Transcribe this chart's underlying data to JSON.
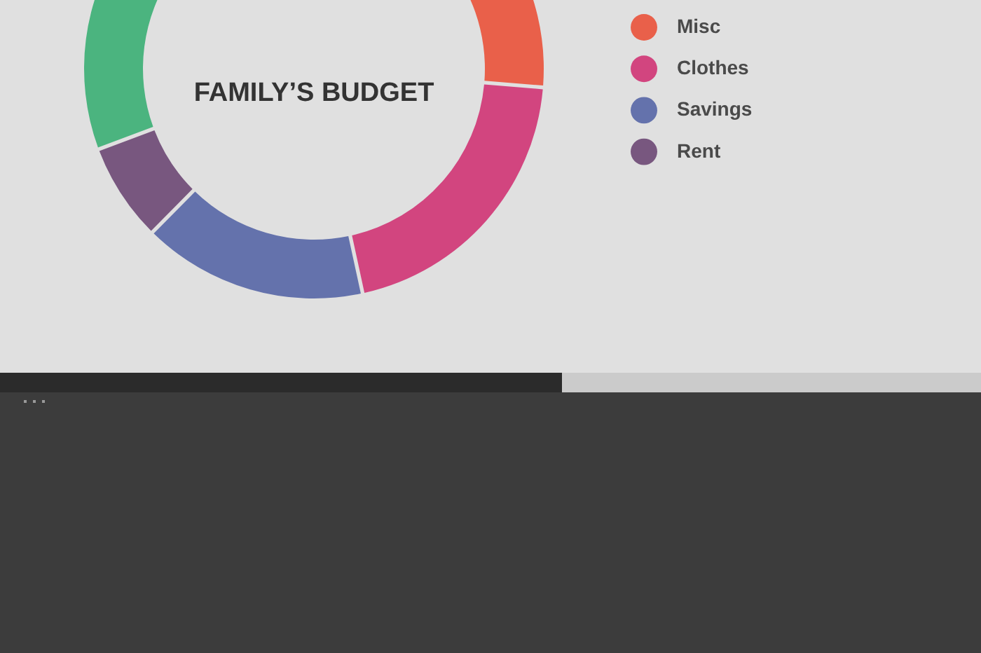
{
  "chart_data": {
    "type": "donut",
    "title": "FAMILY’S BUDGET",
    "categories": [
      "Misc",
      "Clothes",
      "Savings",
      "Rent",
      null
    ],
    "values": [
      26.3,
      20.3,
      15.8,
      6.9,
      30.7
    ],
    "colors": [
      "#e9604a",
      "#d2457f",
      "#6472ac",
      "#78577f",
      "#4bb47f"
    ],
    "legend": "right"
  }
}
